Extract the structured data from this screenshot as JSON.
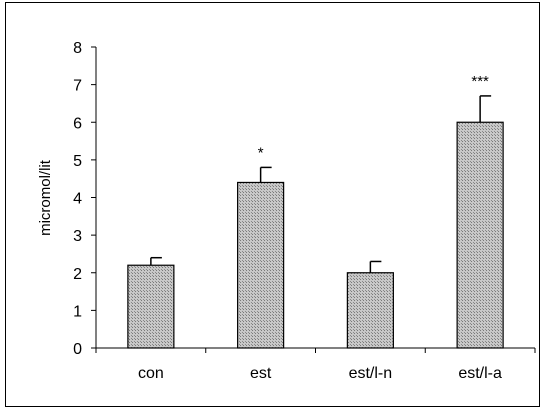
{
  "chart_data": {
    "type": "bar",
    "categories": [
      "con",
      "est",
      "est/l-n",
      "est/l-a"
    ],
    "values": [
      2.2,
      4.4,
      2.0,
      6.0
    ],
    "error_bars": [
      0.2,
      0.4,
      0.3,
      0.7
    ],
    "annotations": [
      "",
      "*",
      "",
      "***"
    ],
    "title": "",
    "xlabel": "",
    "ylabel": "micromol/lit",
    "ylim": [
      0,
      8
    ],
    "yticks": [
      0,
      1,
      2,
      3,
      4,
      5,
      6,
      7,
      8
    ],
    "grid": false,
    "legend": "none",
    "colors": {
      "bar_fill": "#a6a6a6",
      "bar_stroke": "#000000",
      "axis": "#000000"
    }
  }
}
